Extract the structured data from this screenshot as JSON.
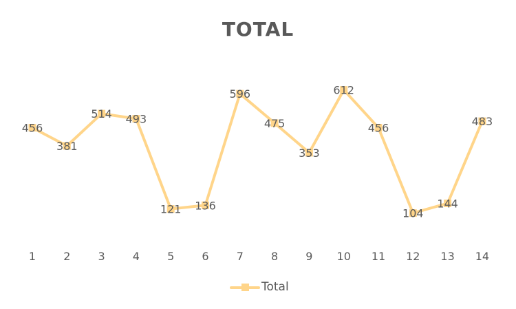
{
  "chart_data": {
    "type": "line",
    "title": "TOTAL",
    "categories": [
      "1",
      "2",
      "3",
      "4",
      "5",
      "6",
      "7",
      "8",
      "9",
      "10",
      "11",
      "12",
      "13",
      "14"
    ],
    "series": [
      {
        "name": "Total",
        "values": [
          456,
          381,
          514,
          493,
          121,
          136,
          596,
          475,
          353,
          612,
          456,
          104,
          144,
          483
        ]
      }
    ],
    "ylim": [
      0,
      700
    ],
    "grid": false,
    "data_labels": true,
    "legend_position": "bottom",
    "series_color": "#FFD58A",
    "text_color": "#595959"
  }
}
